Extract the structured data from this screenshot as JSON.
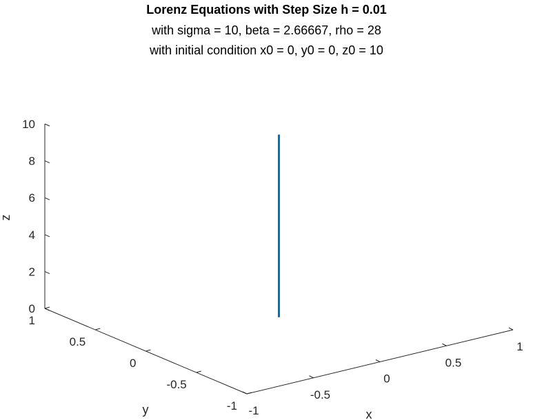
{
  "chart_data": {
    "type": "line",
    "title": "Lorenz Equations with Step Size h = 0.01",
    "subtitle_lines": [
      "with sigma = 10, beta = 2.66667, rho = 28",
      " with initial condition x0 = 0, y0 = 0, z0 = 10"
    ],
    "xlabel": "x",
    "ylabel": "y",
    "zlabel": "z",
    "xlim": [
      -1,
      1
    ],
    "ylim": [
      -1,
      1
    ],
    "zlim": [
      0,
      10
    ],
    "x_ticks": [
      "-1",
      "-0.5",
      "0",
      "0.5",
      "1"
    ],
    "y_ticks": [
      "-1",
      "-0.5",
      "0",
      "0.5",
      "1"
    ],
    "z_ticks": [
      "0",
      "2",
      "4",
      "6",
      "8",
      "10"
    ],
    "grid": false,
    "series": [
      {
        "color": "#0072bd",
        "points": [
          {
            "x": 0,
            "y": 0,
            "z": 0.1
          },
          {
            "x": 0,
            "y": 0,
            "z": 10
          }
        ]
      }
    ]
  }
}
